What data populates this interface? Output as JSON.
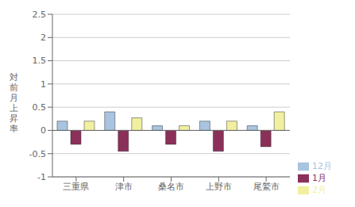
{
  "chart_data": {
    "type": "bar",
    "categories": [
      "三重県",
      "津市",
      "桑名市",
      "上野市",
      "尾鷲市"
    ],
    "series": [
      {
        "name": "12月",
        "color": "#a8c4e0",
        "values": [
          0.2,
          0.4,
          0.1,
          0.2,
          0.1
        ]
      },
      {
        "name": "1月",
        "color": "#8b3058",
        "values": [
          -0.3,
          -0.45,
          -0.3,
          -0.45,
          -0.35
        ]
      },
      {
        "name": "2月",
        "color": "#f0f0a0",
        "values": [
          0.2,
          0.27,
          0.1,
          0.2,
          0.4
        ]
      }
    ],
    "ylabel": "対\n前\n月\n上\n昇\n率",
    "ylim": [
      -1.0,
      2.5
    ],
    "yticks": [
      -1.0,
      -0.5,
      0,
      0.5,
      1.0,
      1.5,
      2.0,
      2.5
    ],
    "grid": true,
    "legend": "lower right"
  }
}
